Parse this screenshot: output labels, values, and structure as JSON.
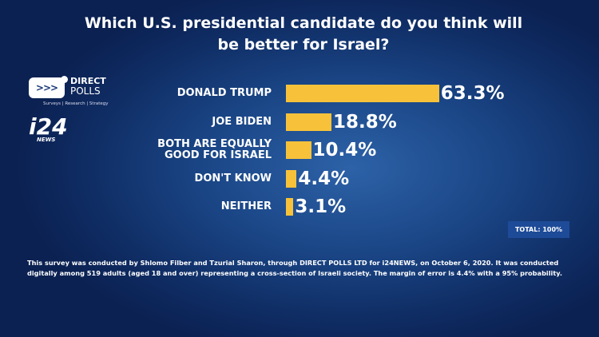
{
  "chart_data": {
    "type": "bar",
    "orientation": "horizontal",
    "title": "Which U.S. presidential candidate do you think will be better for Israel?",
    "categories": [
      "DONALD TRUMP",
      "JOE BIDEN",
      "BOTH ARE EQUALLY GOOD FOR ISRAEL",
      "DON'T KNOW",
      "NEITHER"
    ],
    "values": [
      63.3,
      18.8,
      10.4,
      4.4,
      3.1
    ],
    "value_labels": [
      "63.3%",
      "18.8%",
      "10.4%",
      "4.4%",
      "3.1%"
    ],
    "bar_color": "#f7c23a",
    "xlim": [
      0,
      100
    ],
    "grid": false
  },
  "logos": {
    "direct_polls": "DIRECT POLLS",
    "direct_polls_tagline": "Surveys | Research | Strategy",
    "i24": "i24 NEWS"
  },
  "total": "TOTAL: 100%",
  "footnote": "This survey was conducted by Shlomo Filber and Tzurial Sharon, through DIRECT POLLS LTD for i24NEWS, on October 6, 2020. It was conducted digitally among 519 adults (aged 18 and over) representing a cross-section of Israeli society. The margin of error is 4.4% with a 95% probability."
}
